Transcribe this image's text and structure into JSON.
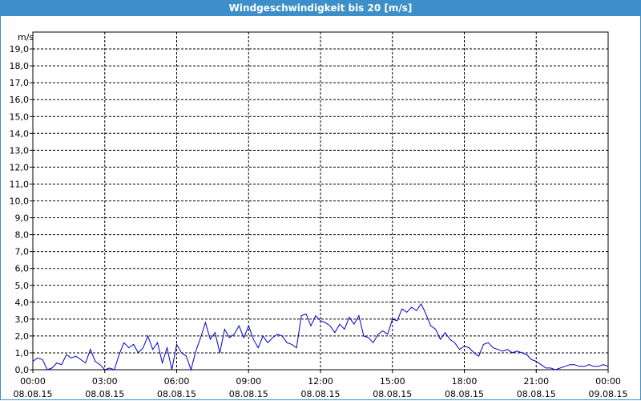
{
  "window": {
    "title": "Windgeschwindigkeit bis 20 [m/s]"
  },
  "chart_data": {
    "type": "line",
    "title": "Windgeschwindigkeit bis 20 [m/s]",
    "ylabel": "m/s",
    "xlabel": "",
    "ylim": [
      0,
      20
    ],
    "xlim": [
      0,
      24
    ],
    "grid": true,
    "yticks": [
      "0,0",
      "1,0",
      "2,0",
      "3,0",
      "4,0",
      "5,0",
      "6,0",
      "7,0",
      "8,0",
      "9,0",
      "10,0",
      "11,0",
      "12,0",
      "13,0",
      "14,0",
      "15,0",
      "16,0",
      "17,0",
      "18,0",
      "19,0"
    ],
    "xticks": [
      {
        "time": "00:00",
        "date": "08.08.15"
      },
      {
        "time": "03:00",
        "date": "08.08.15"
      },
      {
        "time": "06:00",
        "date": "08.08.15"
      },
      {
        "time": "09:00",
        "date": "08.08.15"
      },
      {
        "time": "12:00",
        "date": "08.08.15"
      },
      {
        "time": "15:00",
        "date": "08.08.15"
      },
      {
        "time": "18:00",
        "date": "08.08.15"
      },
      {
        "time": "21:00",
        "date": "08.08.15"
      },
      {
        "time": "00:00",
        "date": "09.08.15"
      }
    ],
    "series": [
      {
        "color": "#0000cc",
        "x": [
          0.0,
          0.2,
          0.4,
          0.6,
          0.8,
          1.0,
          1.2,
          1.4,
          1.6,
          1.8,
          2.0,
          2.2,
          2.4,
          2.6,
          2.8,
          3.0,
          3.2,
          3.4,
          3.6,
          3.8,
          4.0,
          4.2,
          4.4,
          4.6,
          4.8,
          5.0,
          5.2,
          5.4,
          5.6,
          5.8,
          6.0,
          6.2,
          6.4,
          6.6,
          6.8,
          7.0,
          7.2,
          7.4,
          7.6,
          7.8,
          8.0,
          8.2,
          8.4,
          8.6,
          8.8,
          9.0,
          9.2,
          9.4,
          9.6,
          9.8,
          10.0,
          10.2,
          10.4,
          10.6,
          10.8,
          11.0,
          11.2,
          11.4,
          11.6,
          11.8,
          12.0,
          12.2,
          12.4,
          12.6,
          12.8,
          13.0,
          13.2,
          13.4,
          13.6,
          13.8,
          14.0,
          14.2,
          14.4,
          14.6,
          14.8,
          15.0,
          15.2,
          15.4,
          15.6,
          15.8,
          16.0,
          16.2,
          16.4,
          16.6,
          16.8,
          17.0,
          17.2,
          17.4,
          17.6,
          17.8,
          18.0,
          18.2,
          18.4,
          18.6,
          18.8,
          19.0,
          19.2,
          19.4,
          19.6,
          19.8,
          20.0,
          20.2,
          20.4,
          20.6,
          20.8,
          21.0,
          21.2,
          21.4,
          21.6,
          21.8,
          22.0,
          22.2,
          22.4,
          22.6,
          22.8,
          23.0,
          23.2,
          23.4,
          23.6,
          23.8,
          24.0
        ],
        "values": [
          0.5,
          0.7,
          0.6,
          0.0,
          0.1,
          0.4,
          0.3,
          0.9,
          0.7,
          0.8,
          0.6,
          0.4,
          1.2,
          0.5,
          0.3,
          0.0,
          0.1,
          0.0,
          0.9,
          1.6,
          1.3,
          1.5,
          1.0,
          1.3,
          2.0,
          1.2,
          1.6,
          0.4,
          1.3,
          0.0,
          1.5,
          1.0,
          0.8,
          0.0,
          1.1,
          1.9,
          2.8,
          1.8,
          2.2,
          1.0,
          2.4,
          1.9,
          2.1,
          2.6,
          1.9,
          2.6,
          1.8,
          1.3,
          2.0,
          1.6,
          1.9,
          2.1,
          2.0,
          1.6,
          1.5,
          1.3,
          3.2,
          3.3,
          2.6,
          3.2,
          2.9,
          2.8,
          2.6,
          2.2,
          2.7,
          2.4,
          3.1,
          2.7,
          3.2,
          2.0,
          1.9,
          1.6,
          2.1,
          2.3,
          2.1,
          3.0,
          2.9,
          3.6,
          3.4,
          3.7,
          3.5,
          3.9,
          3.3,
          2.6,
          2.4,
          1.8,
          2.2,
          1.8,
          1.6,
          1.2,
          1.4,
          1.3,
          1.0,
          0.8,
          1.5,
          1.6,
          1.3,
          1.2,
          1.1,
          1.2,
          1.0,
          1.1,
          1.0,
          0.9,
          0.6,
          0.5,
          0.3,
          0.1,
          0.1,
          0.0,
          0.1,
          0.2,
          0.3,
          0.3,
          0.2,
          0.2,
          0.3,
          0.2,
          0.2,
          0.3,
          0.2
        ]
      }
    ]
  }
}
